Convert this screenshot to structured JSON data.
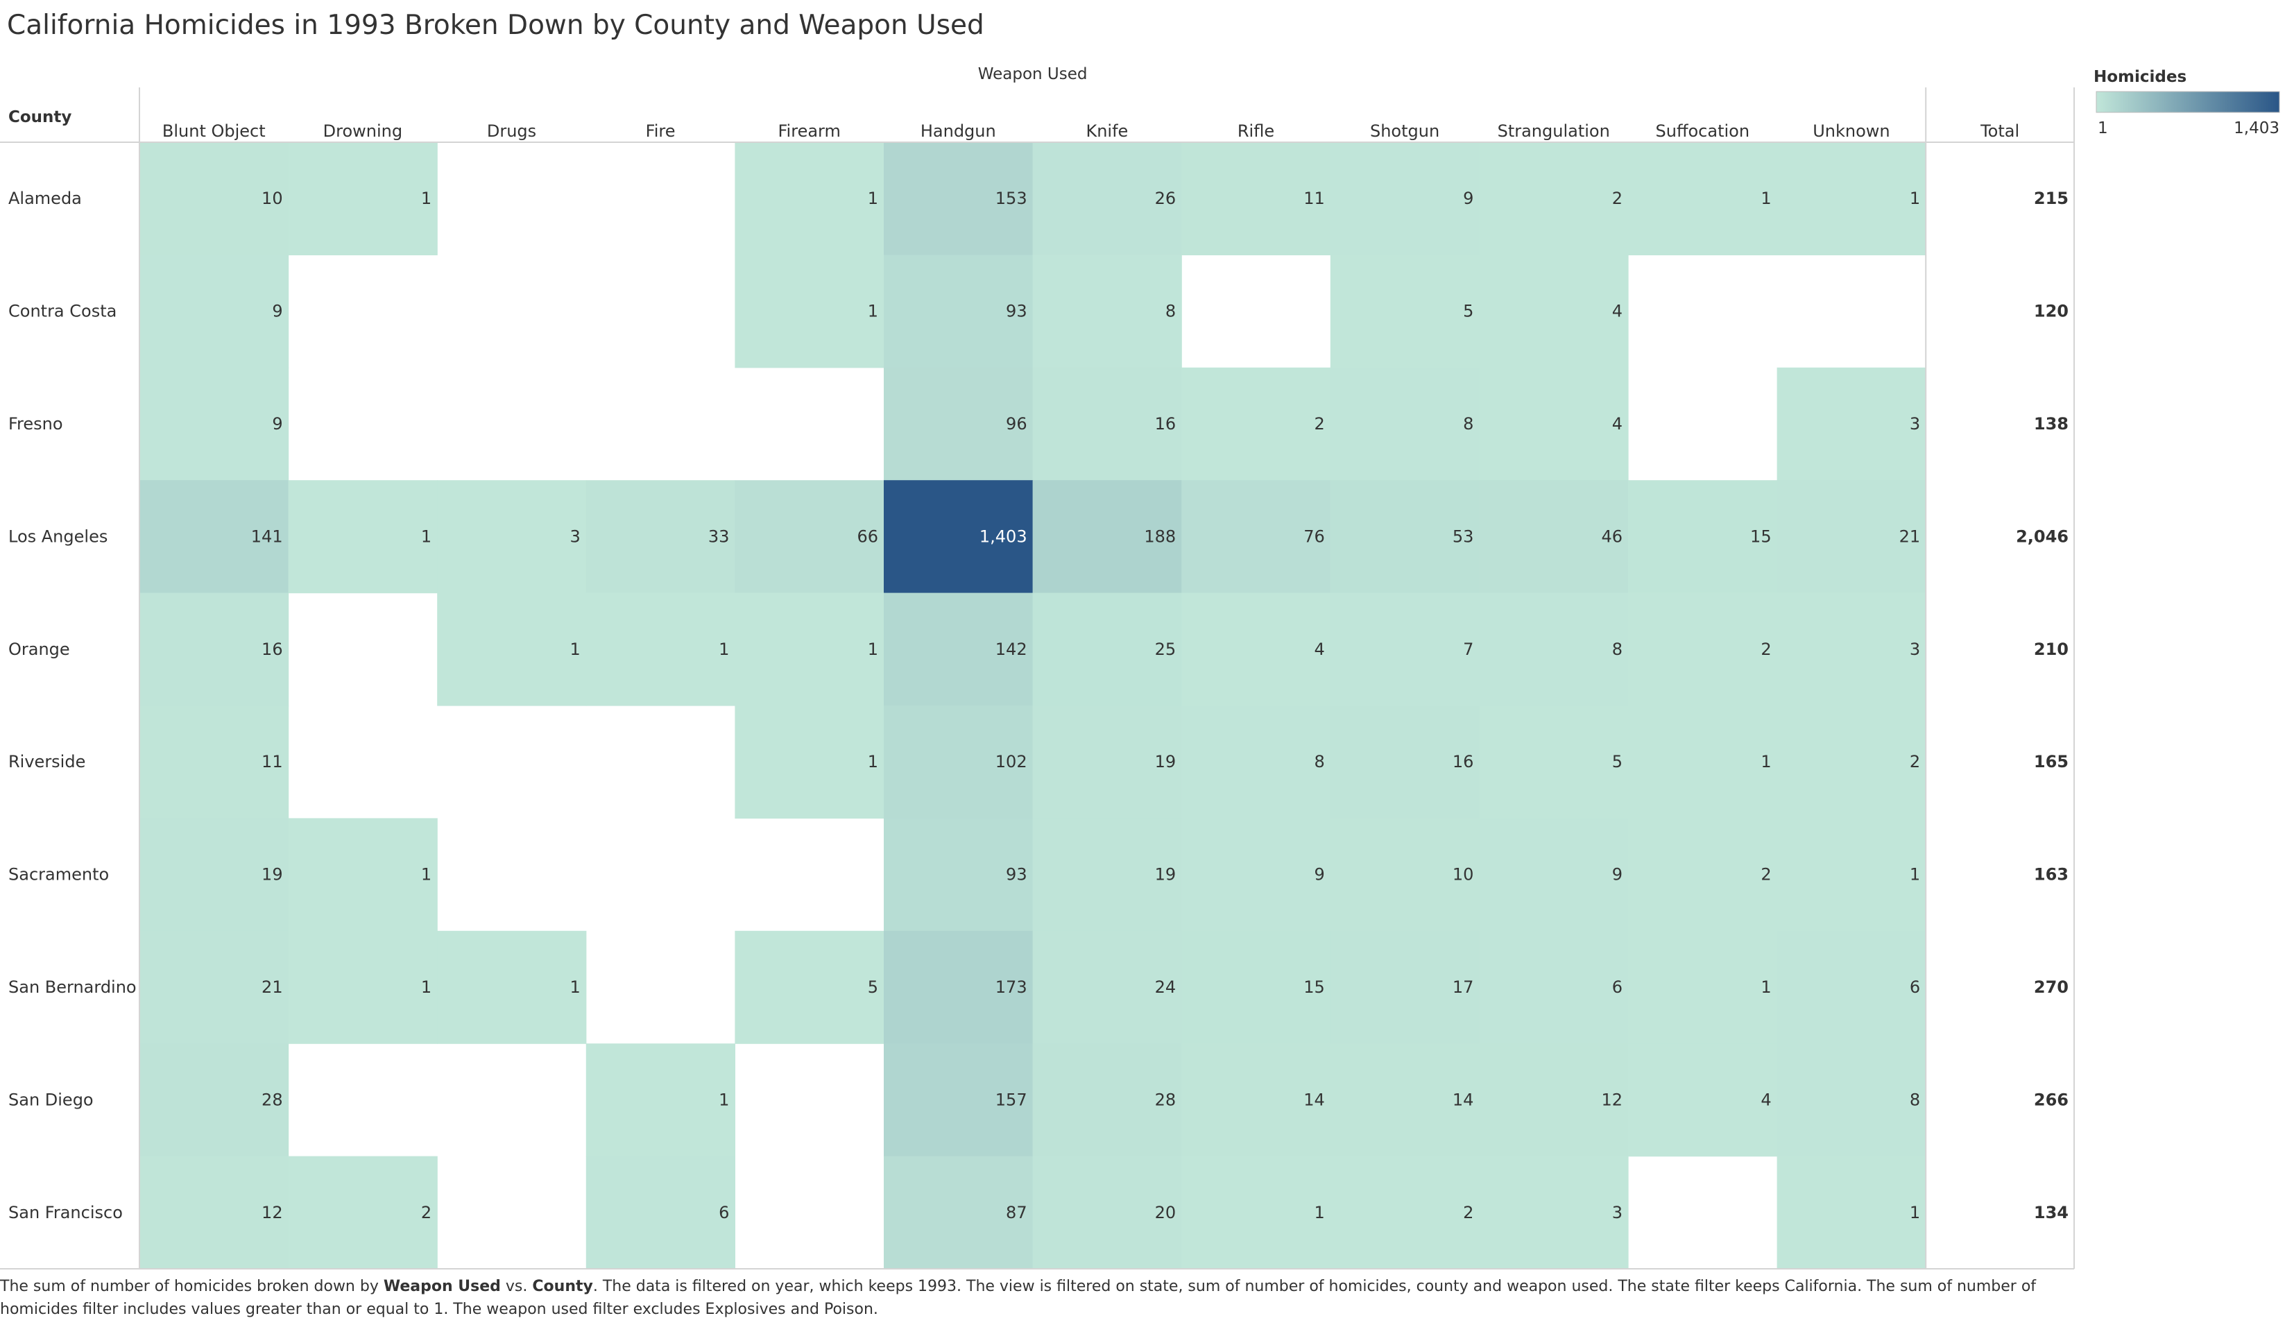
{
  "title": "California Homicides in 1993 Broken Down by County and Weapon Used",
  "footnote": {
    "p1": "The sum of number of homicides broken down by ",
    "b1": "Weapon Used",
    "p2": " vs. ",
    "b2": "County",
    "p3": ".  The data is filtered on year, which keeps 1993.  The view is filtered on state, sum of number of homicides, county and weapon used.  The state filter keeps California.  The sum of number of homicides filter includes values greater than or equal to 1.  The weapon used filter excludes Explosives and Poison."
  },
  "colors": {
    "low": "#c1e6d9",
    "high": "#2a5687",
    "grid": "#d4d4d4",
    "text": "#333333",
    "text_on_dark": "#ffffff"
  },
  "chart_data": {
    "type": "heatmap",
    "title": "California Homicides in 1993 Broken Down by County and Weapon Used",
    "column_header": "Weapon Used",
    "row_header": "County",
    "total_label": "Total",
    "legend": {
      "title": "Homicides",
      "min_label": "1",
      "max_label": "1,403",
      "min": 1,
      "max": 1403
    },
    "categories": [
      "Blunt Object",
      "Drowning",
      "Drugs",
      "Fire",
      "Firearm",
      "Handgun",
      "Knife",
      "Rifle",
      "Shotgun",
      "Strangulation",
      "Suffocation",
      "Unknown"
    ],
    "rows": [
      {
        "county": "Alameda",
        "values": [
          10,
          1,
          null,
          null,
          1,
          153,
          26,
          11,
          9,
          2,
          1,
          1
        ],
        "total": "215"
      },
      {
        "county": "Contra Costa",
        "values": [
          9,
          null,
          null,
          null,
          1,
          93,
          8,
          null,
          5,
          4,
          null,
          null
        ],
        "total": "120"
      },
      {
        "county": "Fresno",
        "values": [
          9,
          null,
          null,
          null,
          null,
          96,
          16,
          2,
          8,
          4,
          null,
          3
        ],
        "total": "138"
      },
      {
        "county": "Los Angeles",
        "values": [
          141,
          1,
          3,
          33,
          66,
          1403,
          188,
          76,
          53,
          46,
          15,
          21
        ],
        "total": "2,046"
      },
      {
        "county": "Orange",
        "values": [
          16,
          null,
          1,
          1,
          1,
          142,
          25,
          4,
          7,
          8,
          2,
          3
        ],
        "total": "210"
      },
      {
        "county": "Riverside",
        "values": [
          11,
          null,
          null,
          null,
          1,
          102,
          19,
          8,
          16,
          5,
          1,
          2
        ],
        "total": "165"
      },
      {
        "county": "Sacramento",
        "values": [
          19,
          1,
          null,
          null,
          null,
          93,
          19,
          9,
          10,
          9,
          2,
          1
        ],
        "total": "163"
      },
      {
        "county": "San Bernardino",
        "values": [
          21,
          1,
          1,
          null,
          5,
          173,
          24,
          15,
          17,
          6,
          1,
          6
        ],
        "total": "270"
      },
      {
        "county": "San Diego",
        "values": [
          28,
          null,
          null,
          1,
          null,
          157,
          28,
          14,
          14,
          12,
          4,
          8
        ],
        "total": "266"
      },
      {
        "county": "San Francisco",
        "values": [
          12,
          2,
          null,
          6,
          null,
          87,
          20,
          1,
          2,
          3,
          null,
          1
        ],
        "total": "134"
      }
    ]
  }
}
